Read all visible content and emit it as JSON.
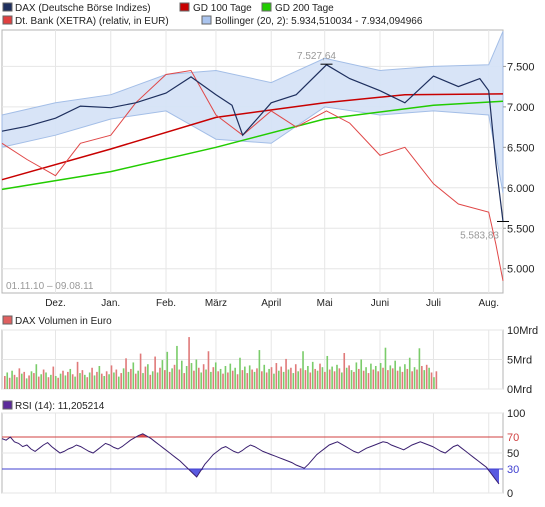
{
  "chart_data": [
    {
      "type": "line",
      "legend": [
        {
          "label": "DAX (Deutsche Börse Indizes)",
          "color": "#1e2f5e"
        },
        {
          "label": "GD 100 Tage",
          "color": "#c80000"
        },
        {
          "label": "GD 200 Tage",
          "color": "#22cc00"
        },
        {
          "label": "Dt. Bank (XETRA) (relativ, in EUR)",
          "color": "#e04040"
        },
        {
          "label": "Bollinger (20, 2): 5.934,510034 - 7.934,094966",
          "color": "#aac4ee"
        }
      ],
      "date_range": "01.11.10 – 09.08.11",
      "x_ticks": [
        "Dez.",
        "Jan.",
        "Feb.",
        "März",
        "April",
        "Mai",
        "Juni",
        "Juli",
        "Aug."
      ],
      "y_ticks": [
        "7.500",
        "7.000",
        "6.500",
        "6.000",
        "5.500",
        "5.000"
      ],
      "ylim": [
        4700,
        7950
      ],
      "annotations": [
        {
          "label": "7.527,64",
          "x": "2011-05-02",
          "y": 7527.64
        },
        {
          "label": "5.583,83",
          "x": "2011-08-09",
          "y": 5583.83
        }
      ],
      "series": [
        {
          "key": "dax",
          "x": [
            "2010-11-01",
            "2010-11-15",
            "2010-12-01",
            "2010-12-15",
            "2011-01-01",
            "2011-01-15",
            "2011-02-01",
            "2011-02-15",
            "2011-03-01",
            "2011-03-10",
            "2011-03-16",
            "2011-04-01",
            "2011-04-15",
            "2011-05-02",
            "2011-05-15",
            "2011-06-01",
            "2011-06-15",
            "2011-07-01",
            "2011-07-15",
            "2011-07-27",
            "2011-08-01",
            "2011-08-05",
            "2011-08-09"
          ],
          "values": [
            6700,
            6760,
            6860,
            7010,
            6990,
            7050,
            7170,
            7370,
            7150,
            7020,
            6650,
            7050,
            7150,
            7520,
            7350,
            7200,
            7050,
            7380,
            7250,
            7350,
            7200,
            6300,
            5583.83
          ]
        },
        {
          "key": "gd100",
          "x": [
            "2010-11-01",
            "2011-01-01",
            "2011-03-01",
            "2011-05-01",
            "2011-06-15",
            "2011-08-09"
          ],
          "values": [
            6100,
            6480,
            6870,
            7050,
            7150,
            7160
          ]
        },
        {
          "key": "gd200",
          "x": [
            "2010-11-01",
            "2011-01-01",
            "2011-03-01",
            "2011-05-01",
            "2011-07-01",
            "2011-08-09"
          ],
          "values": [
            5980,
            6200,
            6500,
            6850,
            7020,
            7070
          ]
        },
        {
          "key": "dtbank",
          "x": [
            "2010-11-01",
            "2010-11-15",
            "2010-12-01",
            "2010-12-15",
            "2011-01-01",
            "2011-01-15",
            "2011-02-01",
            "2011-02-15",
            "2011-03-01",
            "2011-03-16",
            "2011-04-01",
            "2011-04-15",
            "2011-05-02",
            "2011-05-15",
            "2011-06-01",
            "2011-06-15",
            "2011-07-01",
            "2011-07-15",
            "2011-08-01",
            "2011-08-05",
            "2011-08-09"
          ],
          "values": [
            6550,
            6350,
            6150,
            6550,
            6650,
            7050,
            7400,
            7450,
            6900,
            6650,
            6950,
            6750,
            6950,
            6800,
            6400,
            6500,
            6050,
            5800,
            5700,
            5300,
            4850
          ]
        },
        {
          "key": "boll_upper",
          "x": [
            "2010-11-01",
            "2010-12-01",
            "2011-01-01",
            "2011-02-01",
            "2011-03-01",
            "2011-04-01",
            "2011-05-01",
            "2011-06-01",
            "2011-07-01",
            "2011-08-01",
            "2011-08-09"
          ],
          "values": [
            6900,
            7050,
            7150,
            7400,
            7450,
            7300,
            7600,
            7450,
            7500,
            7520,
            7934.09
          ]
        },
        {
          "key": "boll_lower",
          "x": [
            "2010-11-01",
            "2010-12-01",
            "2011-01-01",
            "2011-02-01",
            "2011-03-01",
            "2011-04-01",
            "2011-05-01",
            "2011-06-01",
            "2011-07-01",
            "2011-08-01",
            "2011-08-09"
          ],
          "values": [
            6500,
            6650,
            6850,
            6950,
            6600,
            6550,
            7000,
            6900,
            6950,
            6900,
            5934.51
          ]
        }
      ]
    },
    {
      "type": "bar",
      "legend": "DAX Volumen in Euro",
      "legend_color": "#e06060",
      "y_ticks": [
        "10Mrd",
        "5Mrd",
        "0Mrd"
      ],
      "ylim": [
        0,
        10
      ],
      "values": [
        2.2,
        2.8,
        1.9,
        3.1,
        2.4,
        2.0,
        3.5,
        2.6,
        2.9,
        1.8,
        2.3,
        3.0,
        2.7,
        4.2,
        2.1,
        2.5,
        3.3,
        2.8,
        2.0,
        2.4,
        3.8,
        2.2,
        1.9,
        2.6,
        3.1,
        2.3,
        2.9,
        3.4,
        2.5,
        2.1,
        4.6,
        2.7,
        3.2,
        2.4,
        2.0,
        2.8,
        3.6,
        2.3,
        2.9,
        3.9,
        2.6,
        2.2,
        3.0,
        2.5,
        4.0,
        2.8,
        3.3,
        2.1,
        2.7,
        3.5,
        5.2,
        2.9,
        3.4,
        4.5,
        2.6,
        3.1,
        6.0,
        2.7,
        3.8,
        4.2,
        2.4,
        3.0,
        5.5,
        2.8,
        3.6,
        4.9,
        3.2,
        6.3,
        2.9,
        3.5,
        4.1,
        7.3,
        3.3,
        4.8,
        2.7,
        3.9,
        8.8,
        4.4,
        3.1,
        5.0,
        3.6,
        2.8,
        4.2,
        3.3,
        6.4,
        2.9,
        3.7,
        4.5,
        3.0,
        3.4,
        2.6,
        3.9,
        2.8,
        4.3,
        3.1,
        3.6,
        2.5,
        5.3,
        3.2,
        3.8,
        2.7,
        4.0,
        3.3,
        2.9,
        3.5,
        6.6,
        3.0,
        4.1,
        2.8,
        3.4,
        3.7,
        2.6,
        4.4,
        3.1,
        3.8,
        2.9,
        5.1,
        3.3,
        3.6,
        2.7,
        4.2,
        3.0,
        3.5,
        6.4,
        3.2,
        3.9,
        2.8,
        4.6,
        3.4,
        3.1,
        4.3,
        3.7,
        2.9,
        5.6,
        3.3,
        3.8,
        3.0,
        4.1,
        3.5,
        2.8,
        6.1,
        3.6,
        4.0,
        3.2,
        2.9,
        4.5,
        3.4,
        5.0,
        3.1,
        3.7,
        2.7,
        4.3,
        3.3,
        3.9,
        3.0,
        4.4,
        3.6,
        7.0,
        3.2,
        4.0,
        3.5,
        4.8,
        3.1,
        3.8,
        2.9,
        4.2,
        3.4,
        5.3,
        3.0,
        3.7,
        3.3,
        6.9,
        3.9,
        3.2,
        4.1,
        3.6,
        2.8,
        2.0,
        3.0
      ]
    },
    {
      "type": "line",
      "legend": "RSI (14): 11,205214",
      "legend_color": "#5b2a9a",
      "y_ticks": [
        "100",
        "70",
        "50",
        "30",
        "0"
      ],
      "ylim": [
        0,
        100
      ],
      "levels": [
        70,
        30
      ],
      "values": [
        68,
        66,
        70,
        64,
        62,
        58,
        60,
        55,
        52,
        56,
        60,
        63,
        58,
        54,
        50,
        52,
        55,
        57,
        60,
        58,
        55,
        52,
        50,
        54,
        58,
        62,
        60,
        57,
        55,
        58,
        62,
        66,
        69,
        72,
        74,
        71,
        68,
        64,
        60,
        56,
        52,
        48,
        44,
        40,
        35,
        30,
        25,
        20,
        28,
        36,
        42,
        48,
        52,
        56,
        58,
        55,
        52,
        50,
        53,
        57,
        60,
        58,
        55,
        52,
        50,
        48,
        46,
        44,
        42,
        40,
        38,
        35,
        33,
        31,
        36,
        42,
        48,
        52,
        56,
        60,
        62,
        64,
        61,
        58,
        55,
        52,
        50,
        53,
        56,
        58,
        60,
        62,
        64,
        63,
        60,
        58,
        56,
        54,
        57,
        60,
        62,
        64,
        62,
        60,
        58,
        55,
        52,
        50,
        54,
        58,
        60,
        56,
        52,
        48,
        44,
        40,
        36,
        32,
        25,
        18,
        11.2
      ]
    }
  ]
}
